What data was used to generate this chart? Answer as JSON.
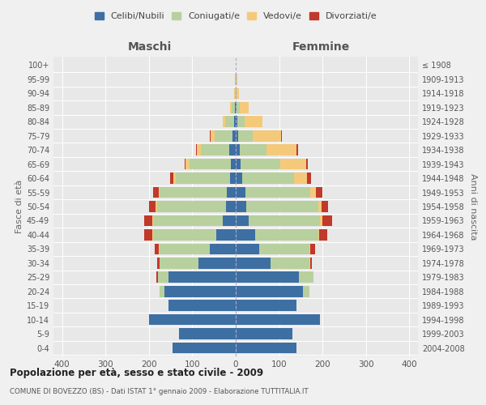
{
  "age_groups": [
    "0-4",
    "5-9",
    "10-14",
    "15-19",
    "20-24",
    "25-29",
    "30-34",
    "35-39",
    "40-44",
    "45-49",
    "50-54",
    "55-59",
    "60-64",
    "65-69",
    "70-74",
    "75-79",
    "80-84",
    "85-89",
    "90-94",
    "95-99",
    "100+"
  ],
  "birth_years": [
    "2004-2008",
    "1999-2003",
    "1994-1998",
    "1989-1993",
    "1984-1988",
    "1979-1983",
    "1974-1978",
    "1969-1973",
    "1964-1968",
    "1959-1963",
    "1954-1958",
    "1949-1953",
    "1944-1948",
    "1939-1943",
    "1934-1938",
    "1929-1933",
    "1924-1928",
    "1919-1923",
    "1914-1918",
    "1909-1913",
    "≤ 1908"
  ],
  "maschi": {
    "celibi": [
      145,
      130,
      200,
      155,
      165,
      155,
      85,
      60,
      45,
      30,
      22,
      20,
      14,
      12,
      15,
      8,
      4,
      2,
      0,
      0,
      0
    ],
    "coniugati": [
      0,
      0,
      0,
      0,
      10,
      25,
      90,
      115,
      145,
      160,
      160,
      155,
      125,
      95,
      65,
      40,
      20,
      8,
      2,
      1,
      0
    ],
    "vedovi": [
      0,
      0,
      0,
      0,
      0,
      0,
      1,
      2,
      2,
      2,
      2,
      3,
      5,
      8,
      10,
      10,
      5,
      3,
      1,
      0,
      0
    ],
    "divorziati": [
      0,
      0,
      0,
      0,
      1,
      2,
      5,
      10,
      18,
      18,
      15,
      12,
      8,
      3,
      2,
      1,
      0,
      0,
      0,
      0,
      0
    ]
  },
  "femmine": {
    "nubili": [
      140,
      130,
      195,
      140,
      155,
      145,
      80,
      55,
      45,
      30,
      25,
      22,
      14,
      12,
      10,
      5,
      3,
      2,
      0,
      0,
      0
    ],
    "coniugate": [
      0,
      0,
      0,
      0,
      15,
      35,
      90,
      115,
      145,
      165,
      165,
      150,
      120,
      90,
      60,
      35,
      18,
      8,
      2,
      1,
      0
    ],
    "vedove": [
      0,
      0,
      0,
      0,
      0,
      0,
      1,
      2,
      3,
      5,
      8,
      12,
      30,
      60,
      70,
      65,
      40,
      20,
      5,
      2,
      0
    ],
    "divorziate": [
      0,
      0,
      0,
      0,
      0,
      0,
      5,
      10,
      18,
      22,
      15,
      15,
      10,
      5,
      3,
      2,
      1,
      0,
      0,
      0,
      0
    ]
  },
  "colors": {
    "celibi": "#3d6fa3",
    "coniugati": "#b8d09e",
    "vedovi": "#f5c97a",
    "divorziati": "#c0392b"
  },
  "xlim": 420,
  "title": "Popolazione per età, sesso e stato civile - 2009",
  "subtitle": "COMUNE DI BOVEZZO (BS) - Dati ISTAT 1° gennaio 2009 - Elaborazione TUTTITALIA.IT",
  "ylabel_left": "Fasce di età",
  "ylabel_right": "Anni di nascita",
  "xlabel_left": "Maschi",
  "xlabel_right": "Femmine",
  "bg_color": "#f0f0f0",
  "plot_bg": "#e8e8e8"
}
